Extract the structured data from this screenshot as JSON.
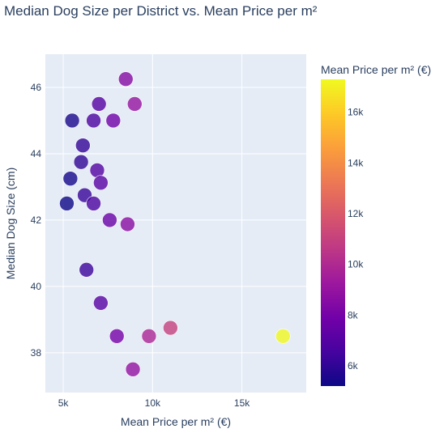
{
  "chart_data": {
    "type": "scatter",
    "title": "Median Dog Size per District vs. Mean Price per m²",
    "xlabel": "Mean Price per m² (€)",
    "ylabel": "Median Dog Size (cm)",
    "xlim": [
      4000,
      18600
    ],
    "ylim": [
      36.8,
      47.0
    ],
    "xticks": [
      5000,
      10000,
      15000
    ],
    "xtick_labels": [
      "5k",
      "10k",
      "15k"
    ],
    "yticks": [
      38,
      40,
      42,
      44,
      46
    ],
    "ytick_labels": [
      "38",
      "40",
      "42",
      "44",
      "46"
    ],
    "grid": true,
    "colorbar": {
      "title": "Mean Price per m² (€)",
      "range": [
        5200,
        17300
      ],
      "ticks": [
        6000,
        8000,
        10000,
        12000,
        14000,
        16000
      ],
      "tick_labels": [
        "6k",
        "8k",
        "10k",
        "12k",
        "14k",
        "16k"
      ],
      "colorscale": "plasma"
    },
    "points": [
      {
        "x": 8500,
        "y": 46.25
      },
      {
        "x": 9000,
        "y": 45.5
      },
      {
        "x": 7000,
        "y": 45.5
      },
      {
        "x": 5500,
        "y": 45.0
      },
      {
        "x": 6700,
        "y": 45.0
      },
      {
        "x": 7800,
        "y": 45.0
      },
      {
        "x": 6100,
        "y": 44.25
      },
      {
        "x": 6000,
        "y": 43.75
      },
      {
        "x": 6900,
        "y": 43.5
      },
      {
        "x": 5400,
        "y": 43.25
      },
      {
        "x": 7100,
        "y": 43.125
      },
      {
        "x": 6200,
        "y": 42.75
      },
      {
        "x": 5200,
        "y": 42.5
      },
      {
        "x": 6700,
        "y": 42.5
      },
      {
        "x": 7600,
        "y": 42.0
      },
      {
        "x": 8600,
        "y": 41.875
      },
      {
        "x": 6300,
        "y": 40.5
      },
      {
        "x": 7100,
        "y": 39.5
      },
      {
        "x": 11000,
        "y": 38.75
      },
      {
        "x": 8000,
        "y": 38.5
      },
      {
        "x": 9800,
        "y": 38.5
      },
      {
        "x": 17300,
        "y": 38.5
      },
      {
        "x": 8900,
        "y": 37.5
      }
    ]
  }
}
